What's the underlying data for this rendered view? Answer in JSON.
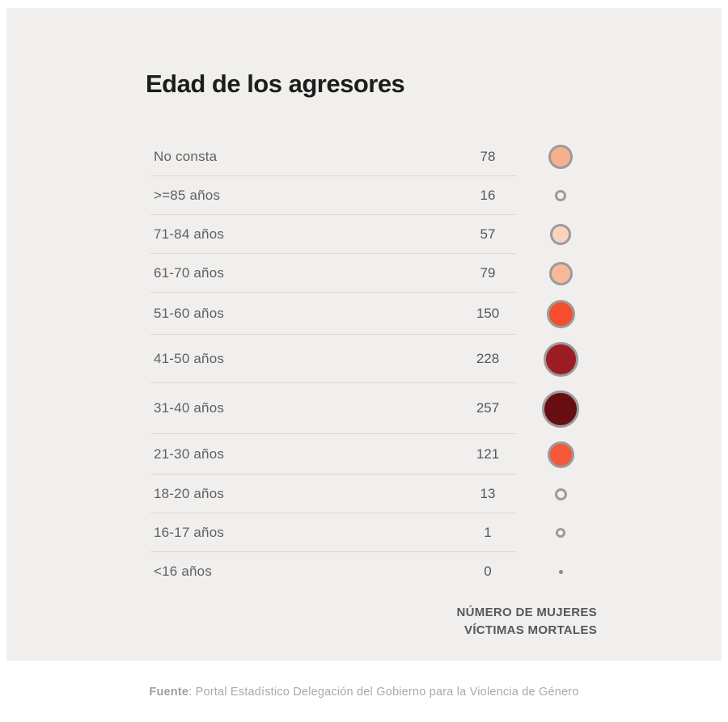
{
  "title": "Edad de los agresores",
  "chart_data": {
    "type": "table",
    "title": "Edad de los agresores",
    "categories": [
      "No consta",
      ">=85 años",
      "71-84 años",
      "61-70 años",
      "51-60 años",
      "41-50 años",
      "31-40 años",
      "21-30 años",
      "18-20 años",
      "16-17 años",
      "<16 años"
    ],
    "values": [
      78,
      16,
      57,
      79,
      150,
      228,
      257,
      121,
      13,
      1,
      0
    ],
    "value_label": "NÚMERO DE MUJERES VÍCTIMAS MORTALES",
    "xlabel": "",
    "ylabel": "Edad",
    "legend_position": "none",
    "grid": "row-dividers"
  },
  "rows": [
    {
      "label": "No consta",
      "value": "78",
      "circle": {
        "diameter": 30,
        "fill": "#f7af8d",
        "ring": true
      }
    },
    {
      "label": ">=85 años",
      "value": "16",
      "circle": {
        "diameter": 14,
        "fill": "#fdeee3",
        "ring": true
      }
    },
    {
      "label": "71-84 años",
      "value": "57",
      "circle": {
        "diameter": 26,
        "fill": "#fad3bf",
        "ring": true
      }
    },
    {
      "label": "61-70 años",
      "value": "79",
      "circle": {
        "diameter": 29,
        "fill": "#f8b999",
        "ring": true
      }
    },
    {
      "label": "51-60 años",
      "value": "150",
      "circle": {
        "diameter": 35,
        "fill": "#f44e2e",
        "ring": true
      }
    },
    {
      "label": "41-50 años",
      "value": "228",
      "circle": {
        "diameter": 43,
        "fill": "#9c1c23",
        "ring": true
      }
    },
    {
      "label": "31-40 años",
      "value": "257",
      "circle": {
        "diameter": 46,
        "fill": "#670e13",
        "ring": true
      }
    },
    {
      "label": "21-30 años",
      "value": "121",
      "circle": {
        "diameter": 33,
        "fill": "#f4573a",
        "ring": true
      }
    },
    {
      "label": "18-20 años",
      "value": "13",
      "circle": {
        "diameter": 15,
        "fill": "#fdeee3",
        "ring": true
      }
    },
    {
      "label": "16-17 años",
      "value": "1",
      "circle": {
        "diameter": 12,
        "fill": "#fdf6f0",
        "ring": true
      }
    },
    {
      "label": "<16 años",
      "value": "0",
      "circle": {
        "diameter": 5,
        "fill": "#8a8a8a",
        "ring": false
      }
    }
  ],
  "axis_note": {
    "line1": "NÚMERO DE MUJERES",
    "line2": "VÍCTIMAS MORTALES"
  },
  "footer": {
    "bold": "Fuente",
    "text": ": Portal Estadístico Delegación del Gobierno para la Violencia de Género"
  },
  "colors": {
    "card_background": "#f0efee",
    "title_text": "#1d1d1b",
    "label_text": "#606060",
    "value_text": "#57575a",
    "divider": "#d9d8d5",
    "circle_ring": "#9b9b9b",
    "footer_text": "#a9a9a9"
  }
}
